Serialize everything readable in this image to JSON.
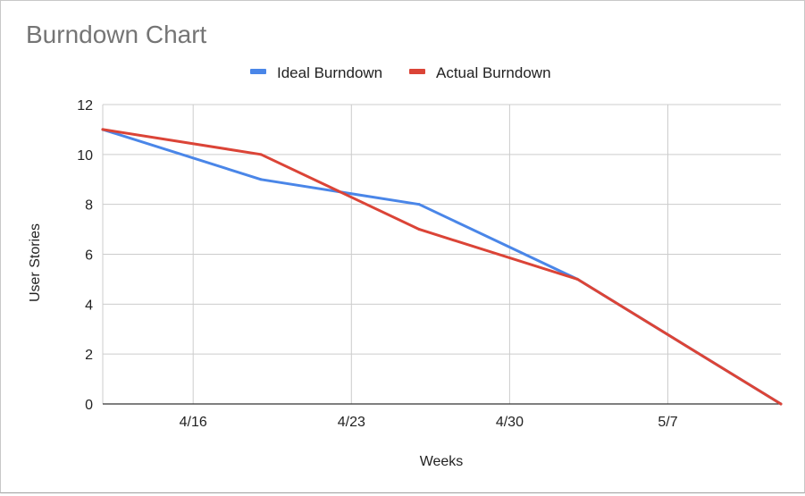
{
  "chart_data": {
    "type": "line",
    "title": "Burndown Chart",
    "xlabel": "Weeks",
    "ylabel": "User Stories",
    "ylim": [
      0,
      12
    ],
    "y_ticks": [
      "0",
      "2",
      "4",
      "6",
      "8",
      "10",
      "12"
    ],
    "x_domain": [
      "2023-04-12",
      "2023-05-12"
    ],
    "x_ticks": [
      {
        "date": "2023-04-16",
        "label": "4/16"
      },
      {
        "date": "2023-04-23",
        "label": "4/23"
      },
      {
        "date": "2023-04-30",
        "label": "4/30"
      },
      {
        "date": "2023-05-07",
        "label": "5/7"
      }
    ],
    "x_grid": [
      "2023-04-16",
      "2023-04-23",
      "2023-04-30",
      "2023-05-07",
      "2023-05-14"
    ],
    "grid": true,
    "legend_position": "top",
    "series": [
      {
        "name": "Ideal Burndown",
        "color": "#4a86e8",
        "points": [
          {
            "x": "2023-04-12",
            "y": 11
          },
          {
            "x": "2023-04-19",
            "y": 9
          },
          {
            "x": "2023-04-26",
            "y": 8
          },
          {
            "x": "2023-05-03",
            "y": 5
          },
          {
            "x": "2023-05-12",
            "y": 0
          }
        ]
      },
      {
        "name": "Actual Burndown",
        "color": "#db4437",
        "points": [
          {
            "x": "2023-04-12",
            "y": 11
          },
          {
            "x": "2023-04-19",
            "y": 10
          },
          {
            "x": "2023-04-26",
            "y": 7
          },
          {
            "x": "2023-05-03",
            "y": 5
          },
          {
            "x": "2023-05-12",
            "y": 0
          }
        ]
      }
    ]
  }
}
